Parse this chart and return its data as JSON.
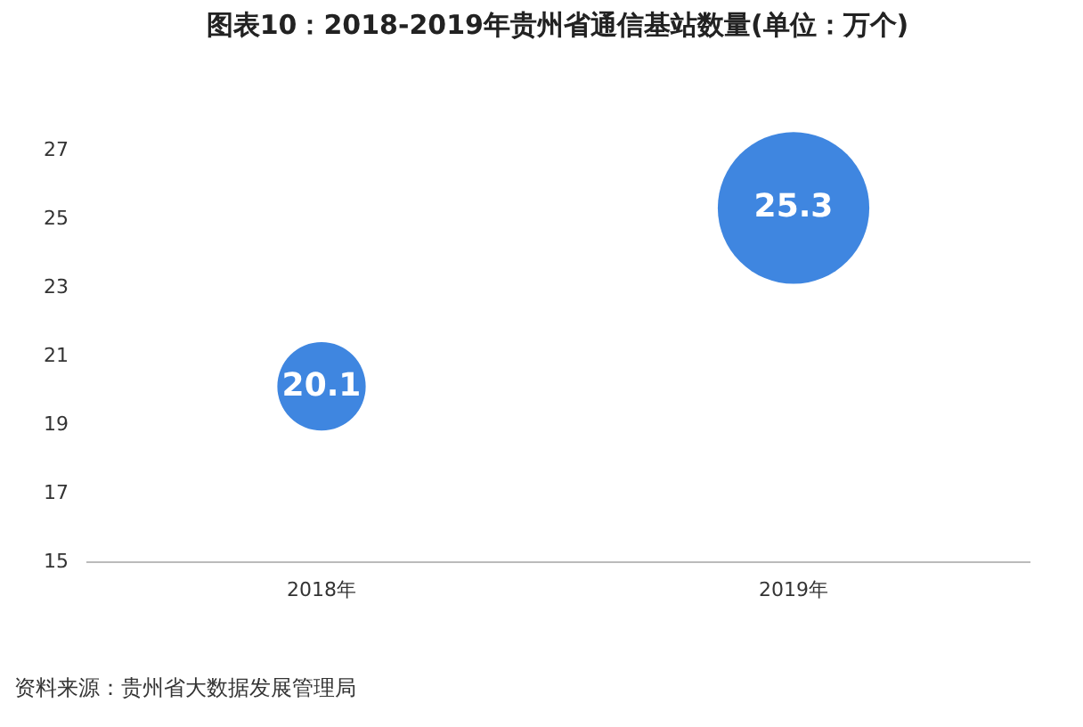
{
  "chart_data": {
    "type": "bubble",
    "title": "图表10：2018-2019年贵州省通信基站数量(单位：万个)",
    "categories": [
      "2018年",
      "2019年"
    ],
    "series": [
      {
        "color": "#3f86e0",
        "values": [
          20.1,
          25.3
        ],
        "sizes": [
          0.34,
          1
        ]
      }
    ],
    "ylim": [
      15,
      27
    ],
    "yticks": [
      15,
      17,
      19,
      21,
      23,
      25,
      27
    ],
    "grid": false,
    "data_labels": true,
    "annotations": [
      "资料来源：贵州省大数据发展管理局"
    ]
  }
}
